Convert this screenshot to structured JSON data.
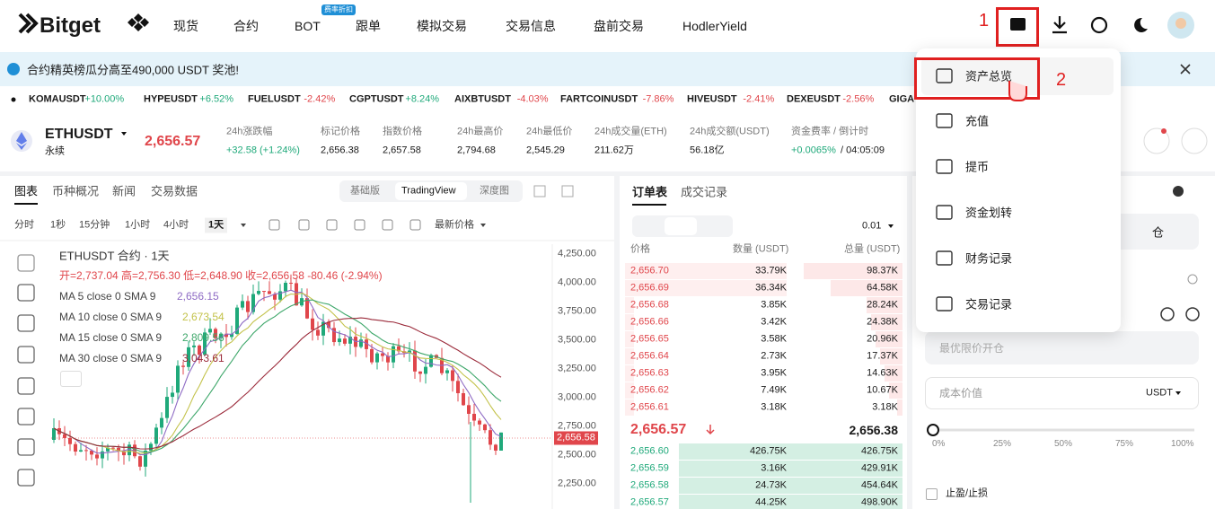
{
  "nav": {
    "logo": "Bitget",
    "items": [
      "现货",
      "合约",
      "BOT",
      "跟单",
      "模拟交易",
      "交易信息",
      "盘前交易",
      "HodlerYield"
    ],
    "badge": "费率折扣"
  },
  "annotations": {
    "step1": "1",
    "step2": "2"
  },
  "banner": {
    "text": "合约精英榜瓜分高至490,000 USDT 奖池!"
  },
  "ticker": [
    {
      "symbol": "KOMAUSDT",
      "change": "+10.00%"
    },
    {
      "symbol": "HYPEUSDT",
      "change": "+6.52%"
    },
    {
      "symbol": "FUELUSDT",
      "change": "-2.42%"
    },
    {
      "symbol": "CGPTUSDT",
      "change": "+8.24%"
    },
    {
      "symbol": "AIXBTUSDT",
      "change": "-4.03%"
    },
    {
      "symbol": "FARTCOINUSDT",
      "change": "-7.86%"
    },
    {
      "symbol": "HIVEUSDT",
      "change": "-2.41%"
    },
    {
      "symbol": "DEXEUSDT",
      "change": "-2.56%"
    },
    {
      "symbol": "GIGA"
    }
  ],
  "pair": {
    "symbol": "ETHUSDT",
    "type": "永续",
    "price": "2,656.57",
    "stats": [
      {
        "label": "24h涨跌幅",
        "value": "+32.58 (+1.24%)"
      },
      {
        "label": "标记价格",
        "value": "2,656.38"
      },
      {
        "label": "指数价格",
        "value": "2,657.58"
      },
      {
        "label": "24h最高价",
        "value": "2,794.68"
      },
      {
        "label": "24h最低价",
        "value": "2,545.29"
      },
      {
        "label": "24h成交量(ETH)",
        "value": "211.62万"
      },
      {
        "label": "24h成交额(USDT)",
        "value": "56.18亿"
      },
      {
        "label": "资金费率 / 倒计时",
        "value": "+0.0065%",
        "extra": "/ 04:05:09"
      }
    ]
  },
  "chart_panel": {
    "tabs": [
      "图表",
      "币种概况",
      "新闻",
      "交易数据"
    ],
    "views": [
      "基础版",
      "TradingView",
      "深度图"
    ],
    "intervals": [
      "分时",
      "1秒",
      "15分钟",
      "1小时",
      "4小时",
      "1天"
    ],
    "price_type": "最新价格",
    "legend": {
      "title": "ETHUSDT 合约 · 1天",
      "ohlc": "开=2,737.04 高=2,756.30 低=2,648.90 收=2,656.58 -80.46 (-2.94%)",
      "ma": [
        {
          "name": "MA 5 close 0 SMA 9",
          "value": "2,656.15",
          "color": "#8e6bc4"
        },
        {
          "name": "MA 10 close 0 SMA 9",
          "value": "2,673.54",
          "color": "#c3c24a"
        },
        {
          "name": "MA 15 close 0 SMA 9",
          "value": "2,809.56",
          "color": "#3ea76a"
        },
        {
          "name": "MA 30 close 0 SMA 9",
          "value": "3,043.61",
          "color": "#9b2a3a"
        }
      ]
    },
    "price_axis": [
      "4,250.00",
      "4,000.00",
      "3,750.00",
      "3,500.00",
      "3,250.00",
      "3,000.00",
      "2,750.00",
      "2,500.00",
      "2,250.00"
    ],
    "last_price": "2,656.58"
  },
  "order_book": {
    "tabs": [
      "订单表",
      "成交记录"
    ],
    "precision": "0.01",
    "headers": [
      "价格",
      "数量 (USDT)",
      "总量 (USDT)"
    ],
    "asks": [
      [
        "2,656.70",
        "33.79K",
        "98.37K"
      ],
      [
        "2,656.69",
        "36.34K",
        "64.58K"
      ],
      [
        "2,656.68",
        "3.85K",
        "28.24K"
      ],
      [
        "2,656.66",
        "3.42K",
        "24.38K"
      ],
      [
        "2,656.65",
        "3.58K",
        "20.96K"
      ],
      [
        "2,656.64",
        "2.73K",
        "17.37K"
      ],
      [
        "2,656.63",
        "3.95K",
        "14.63K"
      ],
      [
        "2,656.62",
        "7.49K",
        "10.67K"
      ],
      [
        "2,656.61",
        "3.18K",
        "3.18K"
      ]
    ],
    "mid": {
      "price": "2,656.57",
      "mark": "2,656.38"
    },
    "bids": [
      [
        "2,656.60",
        "426.75K",
        "426.75K"
      ],
      [
        "2,656.59",
        "3.16K",
        "429.91K"
      ],
      [
        "2,656.58",
        "24.73K",
        "454.64K"
      ],
      [
        "2,656.57",
        "44.25K",
        "498.90K"
      ]
    ]
  },
  "menu": {
    "items": [
      "资产总览",
      "充值",
      "提币",
      "资金划转",
      "财务记录",
      "交易记录"
    ]
  },
  "order_form": {
    "margin_mode": "仓",
    "price_placeholder": "最优限价开仓",
    "cost_label": "成本价值",
    "unit": "USDT",
    "slider": [
      "0%",
      "25%",
      "50%",
      "75%",
      "100%"
    ],
    "tpsl": "止盈/止损"
  }
}
